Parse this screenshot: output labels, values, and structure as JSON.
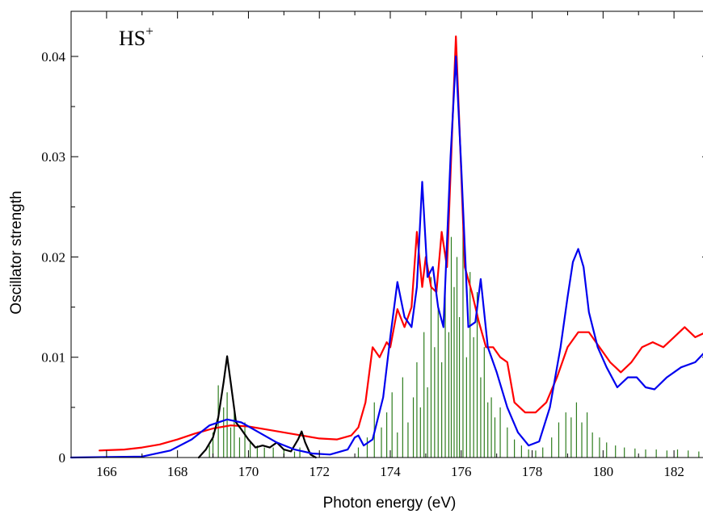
{
  "chart_data": {
    "type": "line",
    "annotation": {
      "text": "HS",
      "superscript": "+"
    },
    "xlabel": "Photon energy (eV)",
    "ylabel": "Oscillator strength",
    "xlim": [
      165,
      183
    ],
    "ylim": [
      0,
      0.0445
    ],
    "xticks": [
      166,
      168,
      170,
      172,
      174,
      176,
      178,
      180,
      182
    ],
    "xtick_labels": [
      "166",
      "168",
      "170",
      "172",
      "174",
      "176",
      "178",
      "180",
      "182"
    ],
    "yticks": [
      0,
      0.01,
      0.02,
      0.03,
      0.04
    ],
    "ytick_labels": [
      "0",
      "0.01",
      "0.02",
      "0.03",
      "0.04"
    ],
    "grid": false,
    "legend": "none",
    "series": [
      {
        "color": "#ff0000",
        "style": "noisy line",
        "x": [
          165.8,
          166.5,
          167.0,
          167.5,
          168.0,
          168.5,
          169.0,
          169.5,
          170.0,
          170.5,
          171.0,
          171.5,
          172.0,
          172.5,
          172.9,
          173.1,
          173.3,
          173.5,
          173.7,
          173.9,
          174.0,
          174.2,
          174.4,
          174.6,
          174.75,
          174.9,
          175.0,
          175.15,
          175.3,
          175.45,
          175.6,
          175.75,
          175.85,
          175.95,
          176.1,
          176.3,
          176.5,
          176.7,
          176.9,
          177.1,
          177.3,
          177.5,
          177.8,
          178.1,
          178.4,
          178.7,
          179.0,
          179.3,
          179.6,
          179.9,
          180.2,
          180.5,
          180.8,
          181.1,
          181.4,
          181.7,
          182.0,
          182.3,
          182.6,
          182.9
        ],
        "y": [
          0.0007,
          0.0008,
          0.001,
          0.0013,
          0.0018,
          0.0024,
          0.0029,
          0.0032,
          0.0031,
          0.0028,
          0.0025,
          0.0022,
          0.0019,
          0.0018,
          0.0022,
          0.003,
          0.0055,
          0.011,
          0.01,
          0.0115,
          0.011,
          0.0148,
          0.013,
          0.015,
          0.0225,
          0.017,
          0.02,
          0.017,
          0.0165,
          0.0225,
          0.019,
          0.033,
          0.042,
          0.033,
          0.019,
          0.0165,
          0.0135,
          0.011,
          0.011,
          0.01,
          0.0095,
          0.0055,
          0.0045,
          0.0045,
          0.0055,
          0.008,
          0.011,
          0.0125,
          0.0125,
          0.011,
          0.0095,
          0.0085,
          0.0095,
          0.011,
          0.0115,
          0.011,
          0.012,
          0.013,
          0.012,
          0.0125
        ]
      },
      {
        "color": "#0000ee",
        "style": "smooth line",
        "x": [
          165.0,
          167.0,
          167.8,
          168.4,
          168.9,
          169.4,
          169.8,
          170.3,
          170.8,
          171.3,
          171.8,
          172.3,
          172.8,
          173.0,
          173.1,
          173.25,
          173.5,
          173.8,
          174.0,
          174.2,
          174.4,
          174.6,
          174.75,
          174.9,
          175.05,
          175.2,
          175.35,
          175.5,
          175.7,
          175.85,
          176.0,
          176.2,
          176.4,
          176.55,
          176.75,
          177.0,
          177.3,
          177.6,
          177.9,
          178.2,
          178.5,
          178.8,
          179.0,
          179.15,
          179.3,
          179.45,
          179.6,
          179.85,
          180.1,
          180.4,
          180.7,
          180.95,
          181.2,
          181.45,
          181.8,
          182.2,
          182.6,
          183.0
        ],
        "y": [
          0.0,
          0.0001,
          0.0007,
          0.0018,
          0.0032,
          0.0038,
          0.0035,
          0.0025,
          0.0015,
          0.0008,
          0.0004,
          0.0003,
          0.0008,
          0.002,
          0.0022,
          0.0012,
          0.0018,
          0.006,
          0.012,
          0.0175,
          0.014,
          0.013,
          0.017,
          0.0275,
          0.018,
          0.019,
          0.015,
          0.013,
          0.03,
          0.04,
          0.029,
          0.013,
          0.0135,
          0.0178,
          0.011,
          0.0085,
          0.005,
          0.0025,
          0.0012,
          0.0016,
          0.005,
          0.011,
          0.016,
          0.0195,
          0.0208,
          0.019,
          0.0145,
          0.011,
          0.009,
          0.007,
          0.008,
          0.008,
          0.007,
          0.0068,
          0.008,
          0.009,
          0.0095,
          0.011
        ]
      },
      {
        "color": "#000000",
        "style": "line",
        "x": [
          168.6,
          168.8,
          169.0,
          169.15,
          169.3,
          169.4,
          169.5,
          169.65,
          169.8,
          170.0,
          170.2,
          170.4,
          170.6,
          170.8,
          171.0,
          171.2,
          171.4,
          171.5,
          171.6,
          171.75,
          171.9
        ],
        "y": [
          0.0,
          0.0008,
          0.002,
          0.004,
          0.0075,
          0.0101,
          0.0075,
          0.0035,
          0.0028,
          0.0018,
          0.001,
          0.0012,
          0.001,
          0.0015,
          0.0008,
          0.0006,
          0.0018,
          0.0026,
          0.0015,
          0.0003,
          0.0
        ]
      },
      {
        "color": "#2e7d1e",
        "style": "sticks",
        "x": [
          168.9,
          169.0,
          169.15,
          169.3,
          169.4,
          169.5,
          169.6,
          169.75,
          169.9,
          170.05,
          170.25,
          170.45,
          170.7,
          171.0,
          171.3,
          171.45,
          173.1,
          173.35,
          173.55,
          173.75,
          173.9,
          174.05,
          174.2,
          174.35,
          174.5,
          174.65,
          174.75,
          174.85,
          174.95,
          175.05,
          175.15,
          175.25,
          175.35,
          175.45,
          175.55,
          175.65,
          175.72,
          175.8,
          175.88,
          175.95,
          176.05,
          176.15,
          176.25,
          176.35,
          176.45,
          176.55,
          176.65,
          176.75,
          176.85,
          176.95,
          177.1,
          177.3,
          177.5,
          177.7,
          177.9,
          178.1,
          178.3,
          178.55,
          178.75,
          178.95,
          179.1,
          179.25,
          179.4,
          179.55,
          179.7,
          179.9,
          180.1,
          180.35,
          180.6,
          180.9,
          181.2,
          181.5,
          181.8,
          182.1,
          182.4,
          182.7
        ],
        "y": [
          0.0012,
          0.0025,
          0.0072,
          0.005,
          0.0065,
          0.003,
          0.0045,
          0.002,
          0.0035,
          0.0015,
          0.0012,
          0.001,
          0.001,
          0.0008,
          0.0006,
          0.001,
          0.001,
          0.002,
          0.0055,
          0.003,
          0.0045,
          0.0065,
          0.0025,
          0.008,
          0.0035,
          0.006,
          0.0095,
          0.005,
          0.0125,
          0.007,
          0.018,
          0.011,
          0.015,
          0.0095,
          0.017,
          0.0125,
          0.022,
          0.017,
          0.02,
          0.014,
          0.023,
          0.01,
          0.0185,
          0.012,
          0.0165,
          0.008,
          0.011,
          0.0055,
          0.006,
          0.004,
          0.005,
          0.003,
          0.0018,
          0.0012,
          0.0008,
          0.0007,
          0.001,
          0.002,
          0.0035,
          0.0045,
          0.004,
          0.0055,
          0.0035,
          0.0045,
          0.0025,
          0.002,
          0.0015,
          0.0012,
          0.001,
          0.0009,
          0.0008,
          0.0008,
          0.0007,
          0.0008,
          0.0007,
          0.0006
        ]
      }
    ]
  }
}
